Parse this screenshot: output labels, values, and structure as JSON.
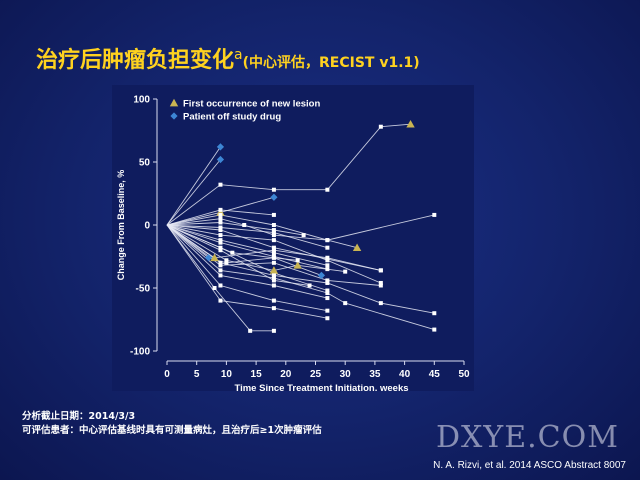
{
  "slide": {
    "title_main": "治疗后肿瘤负担变化",
    "title_sup": "a",
    "title_sub": "(中心评估，RECIST v1.1)",
    "footnote_line1": "分析截止日期：2014/3/3",
    "footnote_line2": "可评估患者：中心评估基线时具有可测量病灶，且治疗后≥1次肿瘤评估",
    "watermark": "DXYE.COM",
    "citation": "N. A. Rizvi, et al. 2014 ASCO Abstract  8007"
  },
  "colors": {
    "background": "#13236a",
    "title": "#ffd21f",
    "line": "#ffffff",
    "new_lesion_marker": "#c9b452",
    "off_drug_marker": "#3d86d4"
  },
  "chart_data": {
    "type": "line",
    "title": "",
    "xlabel": "Time Since Treatment Initiation, weeks",
    "ylabel": "Change From Baseline, %",
    "xlim": [
      0,
      50
    ],
    "ylim": [
      -100,
      100
    ],
    "xticks": [
      0,
      5,
      10,
      15,
      20,
      25,
      30,
      35,
      40,
      45,
      50
    ],
    "yticks": [
      -100,
      -50,
      0,
      50,
      100
    ],
    "grid": false,
    "legend_position": "top-left",
    "legend": [
      {
        "marker": "triangle",
        "label": "First occurrence of new lesion"
      },
      {
        "marker": "diamond",
        "label": "Patient off study drug"
      }
    ],
    "series": [
      {
        "points": [
          [
            0,
            0
          ],
          [
            9,
            62
          ]
        ],
        "markers": [
          null,
          "diamond"
        ]
      },
      {
        "points": [
          [
            0,
            0
          ],
          [
            9,
            52
          ]
        ],
        "markers": [
          null,
          "diamond"
        ]
      },
      {
        "points": [
          [
            0,
            0
          ],
          [
            9,
            32
          ],
          [
            18,
            28
          ],
          [
            27,
            28
          ],
          [
            36,
            78
          ],
          [
            41,
            80
          ]
        ],
        "markers": [
          null,
          null,
          null,
          null,
          null,
          "triangle"
        ]
      },
      {
        "points": [
          [
            0,
            0
          ],
          [
            9,
            10
          ],
          [
            18,
            22
          ]
        ],
        "markers": [
          null,
          "triangle",
          "diamond"
        ]
      },
      {
        "points": [
          [
            0,
            0
          ],
          [
            9,
            12
          ],
          [
            18,
            8
          ]
        ],
        "markers": [
          null,
          null,
          null
        ]
      },
      {
        "points": [
          [
            0,
            0
          ],
          [
            9,
            8
          ],
          [
            18,
            0
          ],
          [
            27,
            -12
          ],
          [
            45,
            8
          ]
        ],
        "markers": [
          null,
          null,
          null,
          null,
          null
        ]
      },
      {
        "points": [
          [
            0,
            0
          ],
          [
            9,
            5
          ],
          [
            13,
            0
          ],
          [
            18,
            -8
          ],
          [
            27,
            -12
          ],
          [
            32,
            -18
          ]
        ],
        "markers": [
          null,
          null,
          null,
          null,
          null,
          "triangle"
        ]
      },
      {
        "points": [
          [
            0,
            0
          ],
          [
            9,
            2
          ],
          [
            18,
            -4
          ],
          [
            23,
            -8
          ]
        ],
        "markers": [
          null,
          null,
          null,
          null
        ]
      },
      {
        "points": [
          [
            0,
            0
          ],
          [
            9,
            -2
          ],
          [
            18,
            -6
          ],
          [
            27,
            -18
          ]
        ],
        "markers": [
          null,
          null,
          null,
          null
        ]
      },
      {
        "points": [
          [
            0,
            0
          ],
          [
            9,
            -4
          ],
          [
            18,
            -18
          ],
          [
            36,
            -36
          ]
        ],
        "markers": [
          null,
          null,
          null,
          null
        ]
      },
      {
        "points": [
          [
            0,
            0
          ],
          [
            9,
            -8
          ],
          [
            18,
            -12
          ],
          [
            27,
            -28
          ],
          [
            36,
            -46
          ]
        ],
        "markers": [
          null,
          null,
          null,
          null,
          null
        ]
      },
      {
        "points": [
          [
            0,
            0
          ],
          [
            9,
            -12
          ],
          [
            18,
            -22
          ],
          [
            27,
            -32
          ]
        ],
        "markers": [
          null,
          null,
          null,
          null
        ]
      },
      {
        "points": [
          [
            0,
            0
          ],
          [
            9,
            -14
          ],
          [
            18,
            -25
          ],
          [
            27,
            -35
          ]
        ],
        "markers": [
          null,
          null,
          null,
          null
        ]
      },
      {
        "points": [
          [
            0,
            0
          ],
          [
            8,
            -26
          ],
          [
            18,
            -20
          ],
          [
            27,
            -26
          ],
          [
            36,
            -36
          ]
        ],
        "markers": [
          null,
          "triangle",
          null,
          null,
          null
        ]
      },
      {
        "points": [
          [
            0,
            0
          ],
          [
            9,
            -18
          ],
          [
            18,
            -38
          ],
          [
            27,
            -52
          ]
        ],
        "markers": [
          null,
          null,
          null,
          null
        ]
      },
      {
        "points": [
          [
            0,
            0
          ],
          [
            10,
            -28
          ],
          [
            18,
            -36
          ],
          [
            22,
            -32
          ],
          [
            30,
            -37
          ]
        ],
        "markers": [
          null,
          null,
          "triangle",
          "triangle",
          null
        ]
      },
      {
        "points": [
          [
            0,
            0
          ],
          [
            9,
            -30
          ],
          [
            18,
            -40
          ],
          [
            27,
            -46
          ],
          [
            36,
            -62
          ],
          [
            45,
            -70
          ]
        ],
        "markers": [
          null,
          null,
          null,
          null,
          null,
          null
        ]
      },
      {
        "points": [
          [
            0,
            0
          ],
          [
            9,
            -32
          ],
          [
            18,
            -30
          ],
          [
            27,
            -44
          ],
          [
            36,
            -48
          ]
        ],
        "markers": [
          null,
          null,
          null,
          null,
          null
        ]
      },
      {
        "points": [
          [
            0,
            0
          ],
          [
            9,
            -36
          ],
          [
            18,
            -42
          ],
          [
            27,
            -54
          ],
          [
            30,
            -62
          ],
          [
            45,
            -83
          ]
        ],
        "markers": [
          null,
          null,
          null,
          null,
          null,
          null
        ]
      },
      {
        "points": [
          [
            0,
            0
          ],
          [
            9,
            -40
          ],
          [
            18,
            -48
          ],
          [
            27,
            -58
          ]
        ],
        "markers": [
          null,
          null,
          null,
          null
        ]
      },
      {
        "points": [
          [
            0,
            0
          ],
          [
            9,
            -48
          ],
          [
            18,
            -60
          ],
          [
            27,
            -68
          ]
        ],
        "markers": [
          null,
          null,
          null,
          null
        ]
      },
      {
        "points": [
          [
            0,
            0
          ],
          [
            8,
            -50
          ],
          [
            14,
            -84
          ],
          [
            18,
            -84
          ]
        ],
        "markers": [
          null,
          null,
          null,
          null
        ]
      },
      {
        "points": [
          [
            0,
            0
          ],
          [
            9,
            -60
          ],
          [
            18,
            -66
          ],
          [
            27,
            -74
          ]
        ],
        "markers": [
          null,
          null,
          null,
          null
        ]
      },
      {
        "points": [
          [
            0,
            0
          ],
          [
            7,
            -26
          ],
          [
            10,
            -30
          ],
          [
            18,
            -26
          ],
          [
            22,
            -28
          ]
        ],
        "markers": [
          null,
          "diamond",
          null,
          null,
          null
        ]
      },
      {
        "points": [
          [
            0,
            0
          ],
          [
            9,
            -20
          ],
          [
            18,
            -44
          ],
          [
            24,
            -48
          ]
        ],
        "markers": [
          null,
          null,
          null,
          null
        ]
      },
      {
        "points": [
          [
            0,
            0
          ],
          [
            11,
            -22
          ],
          [
            18,
            -26
          ],
          [
            26,
            -40
          ]
        ],
        "markers": [
          null,
          null,
          null,
          "diamond"
        ]
      }
    ]
  }
}
